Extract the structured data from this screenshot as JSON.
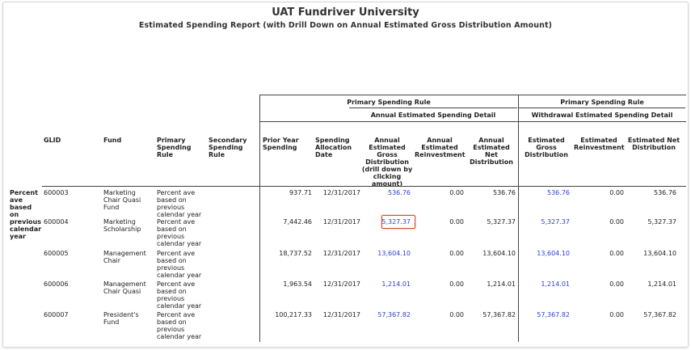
{
  "report": {
    "university": "UAT Fundriver University",
    "subtitle": "Estimated Spending Report (with Drill Down on Annual Estimated Gross Distribution Amount)"
  },
  "groups": {
    "primary_spending_rule_a": "Primary Spending Rule",
    "annual_detail": "Annual Estimated Spending Detail",
    "primary_spending_rule_b": "Primary Spending Rule",
    "withdrawal_detail": "Withdrawal Estimated Spending Detail"
  },
  "columns": {
    "glid": "GLID",
    "fund": "Fund",
    "primary_rule": "Primary Spending Rule",
    "secondary_rule": "Secondary Spending Rule",
    "prior_year": "Prior Year Spending",
    "alloc_date": "Spending Allocation Date",
    "annual_gross": "Annual Estimated Gross Distribution (drill down by clicking amount)",
    "annual_reinvest": "Annual Estimated Reinvestment",
    "annual_net": "Annual Estimated Net Distribution",
    "w_gross": "Estimated Gross Distribution",
    "w_reinvest": "Estimated Reinvestment",
    "w_net": "Estimated Net Distribution"
  },
  "row_group_label": "Percent ave based on previous calendar year",
  "rows": [
    {
      "glid": "600003",
      "fund": "Marketing Chair Quasi Fund",
      "primary_rule": "Percent ave based on previous calendar year",
      "prior_year": "937.71",
      "alloc_date": "12/31/2017",
      "annual_gross": "536.76",
      "annual_reinvest": "0.00",
      "annual_net": "536.76",
      "w_gross": "536.76",
      "w_reinvest": "0.00",
      "w_net": "536.76"
    },
    {
      "glid": "600004",
      "fund": "Marketing Scholarship",
      "primary_rule": "Percent ave based on previous calendar year",
      "prior_year": "7,442.46",
      "alloc_date": "12/31/2017",
      "annual_gross": "5,327.37",
      "annual_reinvest": "0.00",
      "annual_net": "5,327.37",
      "w_gross": "5,327.37",
      "w_reinvest": "0.00",
      "w_net": "5,327.37"
    },
    {
      "glid": "600005",
      "fund": "Management Chair",
      "primary_rule": "Percent ave based on previous calendar year",
      "prior_year": "18,737.52",
      "alloc_date": "12/31/2017",
      "annual_gross": "13,604.10",
      "annual_reinvest": "0.00",
      "annual_net": "13,604.10",
      "w_gross": "13,604.10",
      "w_reinvest": "0.00",
      "w_net": "13,604.10"
    },
    {
      "glid": "600006",
      "fund": "Management Chair Quasi",
      "primary_rule": "Percent ave based on previous calendar year",
      "prior_year": "1,963.54",
      "alloc_date": "12/31/2017",
      "annual_gross": "1,214.01",
      "annual_reinvest": "0.00",
      "annual_net": "1,214.01",
      "w_gross": "1,214.01",
      "w_reinvest": "0.00",
      "w_net": "1,214.01"
    },
    {
      "glid": "600007",
      "fund": "President's Fund",
      "primary_rule": "Percent ave based on previous calendar year",
      "prior_year": "100,217.33",
      "alloc_date": "12/31/2017",
      "annual_gross": "57,367.82",
      "annual_reinvest": "0.00",
      "annual_net": "57,367.82",
      "w_gross": "57,367.82",
      "w_reinvest": "0.00",
      "w_net": "57,367.82"
    }
  ],
  "highlight_color": "#d9453a",
  "link_color": "#2b3fd6"
}
